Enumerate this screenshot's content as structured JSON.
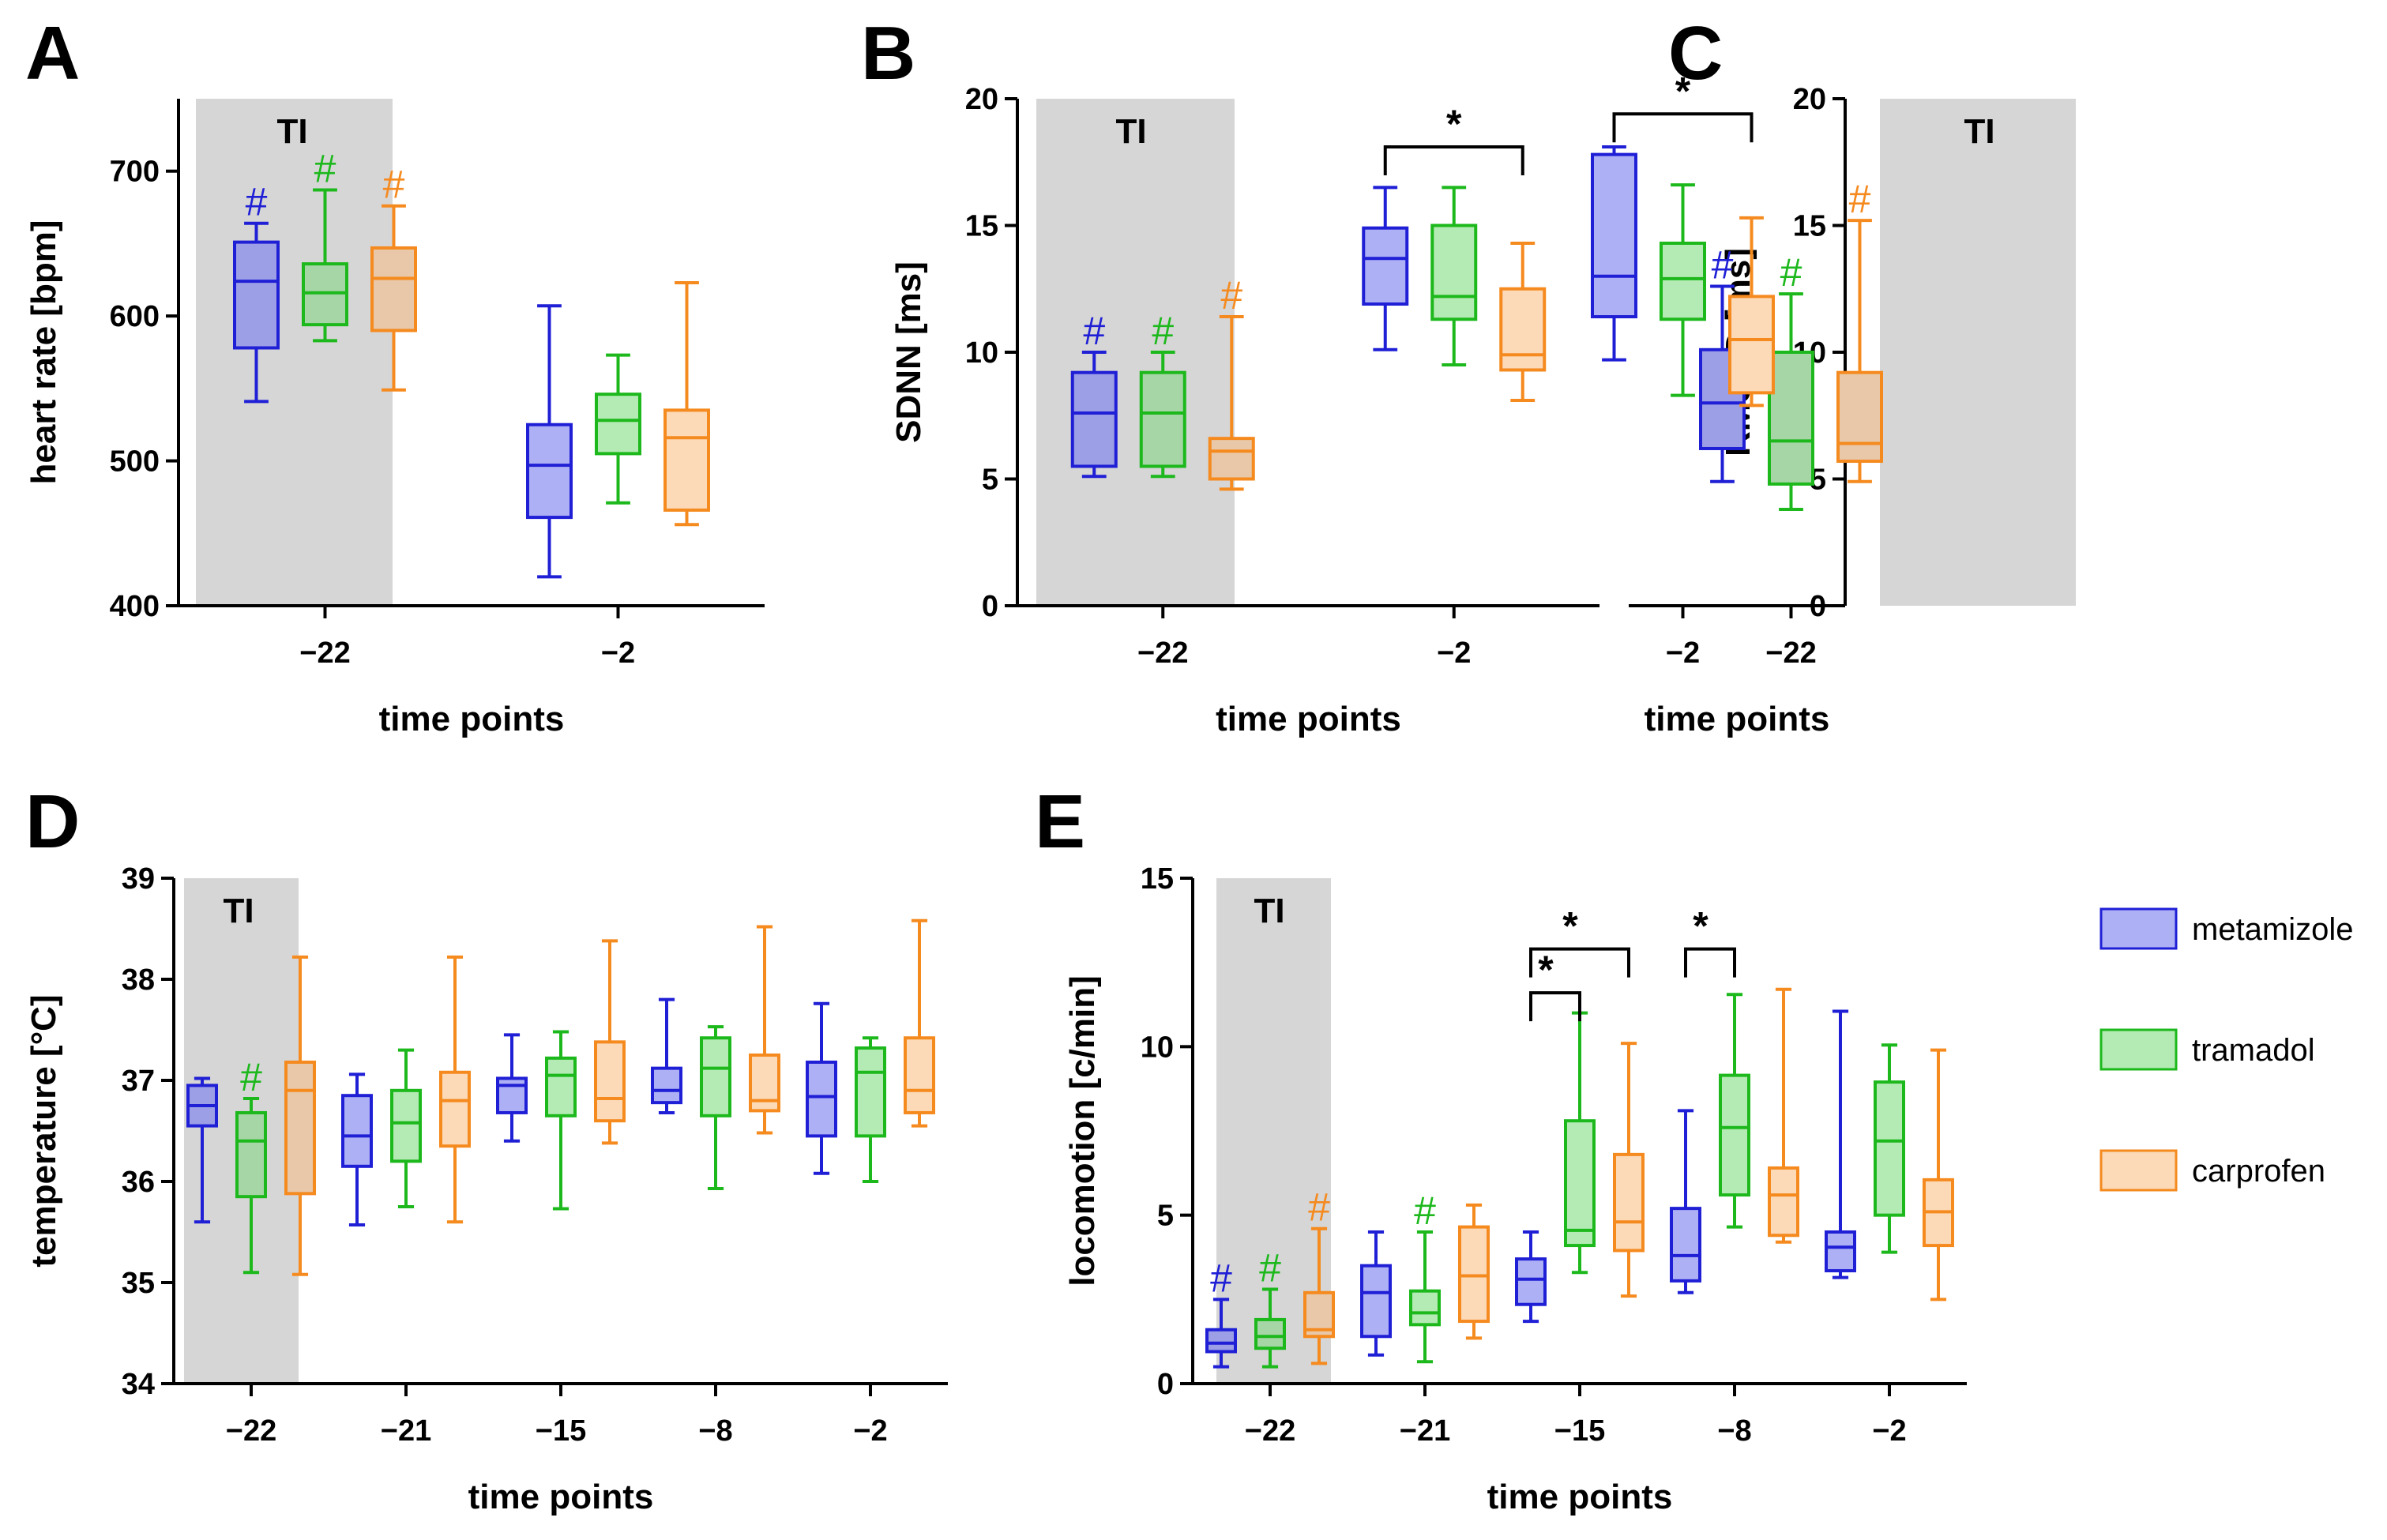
{
  "groups": [
    {
      "key": "metamizole",
      "label": "metamizole",
      "stroke": "#1F1FD6",
      "fill": "#AEB0F5",
      "fill_ti": "#9D9FE6"
    },
    {
      "key": "tramadol",
      "label": "tramadol",
      "stroke": "#1CB81C",
      "fill": "#B4EBB4",
      "fill_ti": "#A6D6A6"
    },
    {
      "key": "carprofen",
      "label": "carprofen",
      "stroke": "#F58A1F",
      "fill": "#FCD9B7",
      "fill_ti": "#E8C8A8"
    }
  ],
  "ti_shade_color": "#D6D6D6",
  "chart_data": [
    {
      "id": "A",
      "type": "boxplot",
      "panel_label": "A",
      "xlabel": "time points",
      "ylabel": "heart rate [bpm]",
      "categories": [
        "−22",
        "−2"
      ],
      "ylim": [
        400,
        750
      ],
      "yticks": [
        400,
        500,
        600,
        700
      ],
      "ti_label": "TI",
      "ti_category": "−22",
      "boxes": [
        [
          {
            "min": 541,
            "q1": 578,
            "median": 624,
            "q3": 651,
            "max": 664,
            "hash": "#"
          },
          {
            "min": 583,
            "q1": 594,
            "median": 616,
            "q3": 636,
            "max": 687,
            "hash": "#"
          },
          {
            "min": 549,
            "q1": 590,
            "median": 626,
            "q3": 647,
            "max": 676,
            "hash": "#"
          }
        ],
        [
          {
            "min": 420,
            "q1": 461,
            "median": 497,
            "q3": 525,
            "max": 607
          },
          {
            "min": 471,
            "q1": 505,
            "median": 528,
            "q3": 546,
            "max": 573
          },
          {
            "min": 456,
            "q1": 466,
            "median": 516,
            "q3": 535,
            "max": 623
          }
        ]
      ],
      "significance": []
    },
    {
      "id": "B",
      "type": "boxplot",
      "panel_label": "B",
      "xlabel": "time points",
      "ylabel": "SDNN [ms]",
      "categories": [
        "−22",
        "−2"
      ],
      "ylim": [
        0,
        20
      ],
      "yticks": [
        0,
        5,
        10,
        15,
        20
      ],
      "ti_label": "TI",
      "ti_category": "−22",
      "boxes": [
        [
          {
            "min": 5.1,
            "q1": 5.5,
            "median": 7.6,
            "q3": 9.2,
            "max": 10.0,
            "hash": "#"
          },
          {
            "min": 5.1,
            "q1": 5.5,
            "median": 7.6,
            "q3": 9.2,
            "max": 10.0,
            "hash": "#"
          },
          {
            "min": 4.6,
            "q1": 5.0,
            "median": 6.1,
            "q3": 6.6,
            "max": 11.4,
            "hash": "#"
          }
        ],
        [
          {
            "min": 10.1,
            "q1": 11.9,
            "median": 13.7,
            "q3": 14.9,
            "max": 16.5
          },
          {
            "min": 9.5,
            "q1": 11.3,
            "median": 12.2,
            "q3": 15.0,
            "max": 16.5
          },
          {
            "min": 8.1,
            "q1": 9.3,
            "median": 9.9,
            "q3": 12.5,
            "max": 14.3
          }
        ]
      ],
      "significance": [
        {
          "category": 1,
          "from": 0,
          "to": 2,
          "label": "*",
          "level": 18.1
        }
      ]
    },
    {
      "id": "C",
      "type": "boxplot",
      "panel_label": "C",
      "xlabel": "time points",
      "ylabel": "RMSSD [ms]",
      "categories": [
        "−22",
        "−2"
      ],
      "ylim": [
        0,
        20
      ],
      "yticks": [
        0,
        5,
        10,
        15,
        20
      ],
      "ti_label": "TI",
      "ti_category": "−22",
      "boxes": [
        [
          {
            "min": 4.9,
            "q1": 6.2,
            "median": 8.0,
            "q3": 10.1,
            "max": 12.6,
            "hash": "#"
          },
          {
            "min": 3.8,
            "q1": 4.8,
            "median": 6.5,
            "q3": 10.0,
            "max": 12.3,
            "hash": "#"
          },
          {
            "min": 4.9,
            "q1": 5.7,
            "median": 6.4,
            "q3": 9.2,
            "max": 15.2,
            "hash": "#"
          }
        ],
        [
          {
            "min": 9.7,
            "q1": 11.4,
            "median": 13.0,
            "q3": 17.8,
            "max": 18.1
          },
          {
            "min": 8.3,
            "q1": 11.3,
            "median": 12.9,
            "q3": 14.3,
            "max": 16.6
          },
          {
            "min": 7.9,
            "q1": 8.4,
            "median": 10.5,
            "q3": 12.2,
            "max": 15.3
          }
        ]
      ],
      "significance": [
        {
          "category": 1,
          "from": 0,
          "to": 2,
          "label": "*",
          "level": 19.4
        }
      ]
    },
    {
      "id": "D",
      "type": "boxplot",
      "panel_label": "D",
      "xlabel": "time points",
      "ylabel": "temperature [°C]",
      "categories": [
        "−22",
        "−21",
        "−15",
        "−8",
        "−2"
      ],
      "ylim": [
        34,
        39
      ],
      "yticks": [
        34,
        35,
        36,
        37,
        38,
        39
      ],
      "ti_label": "TI",
      "ti_category": "−22",
      "boxes": [
        [
          {
            "min": 35.6,
            "q1": 36.55,
            "median": 36.75,
            "q3": 36.95,
            "max": 37.02
          },
          {
            "min": 35.1,
            "q1": 35.85,
            "median": 36.4,
            "q3": 36.68,
            "max": 36.82,
            "hash": "#"
          },
          {
            "min": 35.08,
            "q1": 35.88,
            "median": 36.9,
            "q3": 37.18,
            "max": 38.22
          }
        ],
        [
          {
            "min": 35.57,
            "q1": 36.15,
            "median": 36.45,
            "q3": 36.85,
            "max": 37.06
          },
          {
            "min": 35.75,
            "q1": 36.2,
            "median": 36.58,
            "q3": 36.9,
            "max": 37.3
          },
          {
            "min": 35.6,
            "q1": 36.35,
            "median": 36.8,
            "q3": 37.08,
            "max": 38.22
          }
        ],
        [
          {
            "min": 36.4,
            "q1": 36.68,
            "median": 36.95,
            "q3": 37.02,
            "max": 37.45
          },
          {
            "min": 35.73,
            "q1": 36.65,
            "median": 37.05,
            "q3": 37.22,
            "max": 37.48
          },
          {
            "min": 36.38,
            "q1": 36.6,
            "median": 36.82,
            "q3": 37.38,
            "max": 38.38
          }
        ],
        [
          {
            "min": 36.68,
            "q1": 36.78,
            "median": 36.9,
            "q3": 37.12,
            "max": 37.8
          },
          {
            "min": 35.93,
            "q1": 36.65,
            "median": 37.12,
            "q3": 37.42,
            "max": 37.53
          },
          {
            "min": 36.48,
            "q1": 36.7,
            "median": 36.8,
            "q3": 37.25,
            "max": 38.52
          }
        ],
        [
          {
            "min": 36.08,
            "q1": 36.45,
            "median": 36.84,
            "q3": 37.18,
            "max": 37.76
          },
          {
            "min": 36.0,
            "q1": 36.45,
            "median": 37.08,
            "q3": 37.32,
            "max": 37.42
          },
          {
            "min": 36.55,
            "q1": 36.68,
            "median": 36.9,
            "q3": 37.42,
            "max": 38.58
          }
        ]
      ],
      "significance": []
    },
    {
      "id": "E",
      "type": "boxplot",
      "panel_label": "E",
      "xlabel": "time points",
      "ylabel": "locomotion [c/min]",
      "categories": [
        "−22",
        "−21",
        "−15",
        "−8",
        "−2"
      ],
      "ylim": [
        0,
        15
      ],
      "yticks": [
        0,
        5,
        10,
        15
      ],
      "ti_label": "TI",
      "ti_category": "−22",
      "boxes": [
        [
          {
            "min": 0.5,
            "q1": 0.95,
            "median": 1.2,
            "q3": 1.6,
            "max": 2.5,
            "hash": "#"
          },
          {
            "min": 0.5,
            "q1": 1.05,
            "median": 1.4,
            "q3": 1.9,
            "max": 2.8,
            "hash": "#"
          },
          {
            "min": 0.6,
            "q1": 1.4,
            "median": 1.6,
            "q3": 2.7,
            "max": 4.6,
            "hash": "#"
          }
        ],
        [
          {
            "min": 0.85,
            "q1": 1.4,
            "median": 2.7,
            "q3": 3.5,
            "max": 4.5
          },
          {
            "min": 0.65,
            "q1": 1.75,
            "median": 2.1,
            "q3": 2.75,
            "max": 4.5,
            "hash": "#"
          },
          {
            "min": 1.35,
            "q1": 1.85,
            "median": 3.2,
            "q3": 4.65,
            "max": 5.3
          }
        ],
        [
          {
            "min": 1.85,
            "q1": 2.35,
            "median": 3.1,
            "q3": 3.7,
            "max": 4.5
          },
          {
            "min": 3.3,
            "q1": 4.1,
            "median": 4.55,
            "q3": 7.8,
            "max": 11.0
          },
          {
            "min": 2.6,
            "q1": 3.95,
            "median": 4.8,
            "q3": 6.8,
            "max": 10.1
          }
        ],
        [
          {
            "min": 2.7,
            "q1": 3.05,
            "median": 3.8,
            "q3": 5.2,
            "max": 8.1
          },
          {
            "min": 4.65,
            "q1": 5.6,
            "median": 7.6,
            "q3": 9.15,
            "max": 11.55
          },
          {
            "min": 4.2,
            "q1": 4.4,
            "median": 5.6,
            "q3": 6.4,
            "max": 11.7
          }
        ],
        [
          {
            "min": 3.15,
            "q1": 3.35,
            "median": 4.05,
            "q3": 4.5,
            "max": 11.05
          },
          {
            "min": 3.9,
            "q1": 5.0,
            "median": 7.2,
            "q3": 8.95,
            "max": 10.05
          },
          {
            "min": 2.5,
            "q1": 4.1,
            "median": 5.1,
            "q3": 6.05,
            "max": 9.9
          }
        ]
      ],
      "significance": [
        {
          "category": 2,
          "from": 0,
          "to": 1,
          "label": "*",
          "level": 11.6
        },
        {
          "category": 2,
          "from": 0,
          "to": 2,
          "label": "*",
          "level": 12.9
        },
        {
          "category": 3,
          "from": 0,
          "to": 1,
          "label": "*",
          "level": 12.9
        }
      ]
    }
  ]
}
